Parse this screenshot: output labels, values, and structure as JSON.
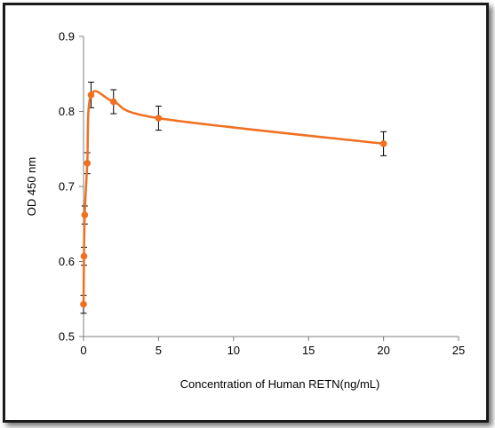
{
  "chart_data": {
    "type": "scatter",
    "title": "",
    "xlabel": "Concentration of Human RETN(ng/mL)",
    "ylabel": "OD 450 nm",
    "xlim": [
      0,
      25
    ],
    "ylim": [
      0.5,
      0.9
    ],
    "xticks": [
      "0",
      "5",
      "10",
      "15",
      "20",
      "25"
    ],
    "yticks": [
      "0.5",
      "0.6",
      "0.7",
      "0.8",
      "0.9"
    ],
    "grid": false,
    "legend": "none",
    "series": [
      {
        "line": "smooth",
        "color": "#f07020",
        "marker": "circle",
        "x": [
          0,
          0.03,
          0.08,
          0.25,
          0.5,
          2,
          5,
          20
        ],
        "y": [
          0.543,
          0.607,
          0.662,
          0.731,
          0.822,
          0.813,
          0.791,
          0.757
        ],
        "error": [
          0.012,
          0.012,
          0.012,
          0.014,
          0.017,
          0.016,
          0.016,
          0.016
        ]
      }
    ]
  }
}
